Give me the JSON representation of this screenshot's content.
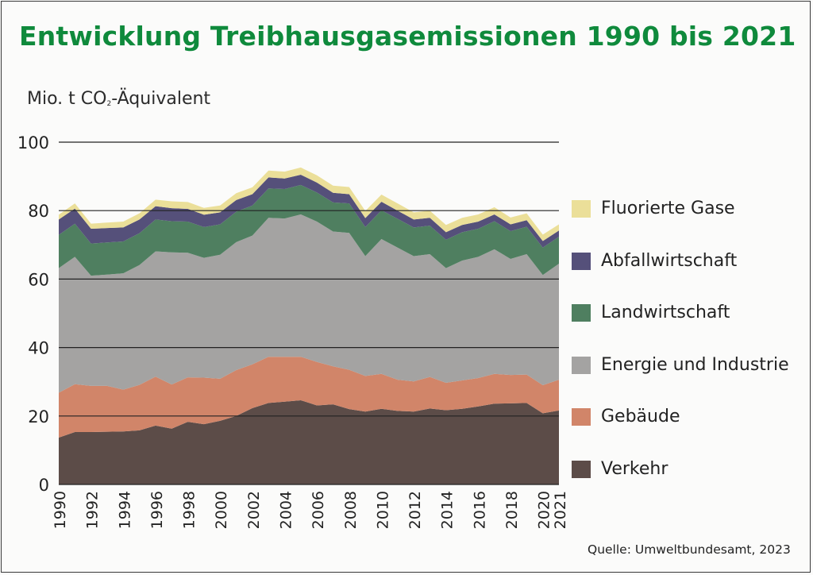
{
  "title": "Entwicklung Treibhausgasemissionen 1990 bis 2021",
  "units": {
    "main": "Mio. t CO",
    "sub": "2",
    "rest": "-Äquivalent"
  },
  "source": "Quelle: Umweltbundesamt, 2023",
  "colors": {
    "verkehr": "#5c4c48",
    "gebaeude": "#d18569",
    "energie": "#a4a3a2",
    "landwirtschaft": "#4f7f60",
    "abfall": "#55507a",
    "fgase": "#ebdf99",
    "grid": "#222222"
  },
  "chart_data": {
    "type": "area",
    "stacked": true,
    "x": [
      1990,
      1991,
      1992,
      1993,
      1994,
      1995,
      1996,
      1997,
      1998,
      1999,
      2000,
      2001,
      2002,
      2003,
      2004,
      2005,
      2006,
      2007,
      2008,
      2009,
      2010,
      2011,
      2012,
      2013,
      2014,
      2015,
      2016,
      2017,
      2018,
      2019,
      2020,
      2021
    ],
    "x_tick_labels": [
      "1990",
      "1992",
      "1994",
      "1996",
      "1998",
      "2000",
      "2002",
      "2004",
      "2006",
      "2008",
      "2010",
      "2012",
      "2014",
      "2016",
      "2018",
      "2020",
      "2021"
    ],
    "y_ticks": [
      "0",
      "20",
      "40",
      "60",
      "80",
      "100"
    ],
    "ylim": [
      0,
      100
    ],
    "ylabel": "Mio. t CO2-Äquivalent",
    "grid": true,
    "legend_position": "right",
    "series": [
      {
        "name": "Verkehr",
        "key": "verkehr",
        "values": [
          13.7,
          15.3,
          15.3,
          15.4,
          15.5,
          15.8,
          17.2,
          16.3,
          18.3,
          17.6,
          18.6,
          20.0,
          22.3,
          23.8,
          24.2,
          24.6,
          23.1,
          23.4,
          22.0,
          21.3,
          22.1,
          21.5,
          21.3,
          22.2,
          21.7,
          22.1,
          22.8,
          23.6,
          23.7,
          23.8,
          20.8,
          21.6
        ]
      },
      {
        "name": "Gebäude",
        "key": "gebaeude",
        "values": [
          13.1,
          14.0,
          13.5,
          13.4,
          12.2,
          13.3,
          14.3,
          12.9,
          13.0,
          13.6,
          12.3,
          13.4,
          12.8,
          13.5,
          13.1,
          12.7,
          12.7,
          11.1,
          11.5,
          10.4,
          10.2,
          9.1,
          8.8,
          9.2,
          8.0,
          8.3,
          8.3,
          8.7,
          8.3,
          8.3,
          8.2,
          9.0
        ]
      },
      {
        "name": "Energie und Industrie",
        "key": "energie",
        "values": [
          36.4,
          37.2,
          32.2,
          32.5,
          34.0,
          35.0,
          36.6,
          38.6,
          36.4,
          35.0,
          36.2,
          37.4,
          37.6,
          40.6,
          40.4,
          41.6,
          41.0,
          39.4,
          40.0,
          35.0,
          39.4,
          38.6,
          36.6,
          35.9,
          33.5,
          35.0,
          35.4,
          36.4,
          33.9,
          35.2,
          32.2,
          33.9
        ]
      },
      {
        "name": "Landwirtschaft",
        "key": "landwirtschaft",
        "values": [
          9.7,
          9.7,
          9.4,
          9.4,
          9.3,
          9.3,
          9.3,
          9.1,
          9.1,
          9.0,
          8.9,
          8.9,
          8.8,
          8.6,
          8.6,
          8.6,
          8.5,
          8.5,
          8.6,
          8.5,
          8.4,
          8.4,
          8.4,
          8.3,
          8.3,
          8.3,
          8.2,
          8.2,
          8.1,
          8.0,
          8.0,
          7.9
        ]
      },
      {
        "name": "Abfallwirtschaft",
        "key": "abfall",
        "values": [
          4.5,
          4.4,
          4.3,
          4.2,
          4.1,
          4.0,
          3.9,
          3.8,
          3.7,
          3.6,
          3.5,
          3.4,
          3.3,
          3.2,
          3.1,
          3.0,
          2.9,
          2.8,
          2.7,
          2.6,
          2.5,
          2.4,
          2.3,
          2.3,
          2.2,
          2.1,
          2.1,
          2.0,
          2.0,
          1.9,
          1.9,
          1.8
        ]
      },
      {
        "name": "Fluorierte Gase",
        "key": "fgase",
        "values": [
          1.4,
          1.5,
          1.5,
          1.6,
          1.7,
          1.8,
          1.9,
          2.0,
          2.0,
          2.0,
          2.0,
          2.0,
          2.0,
          2.0,
          2.0,
          2.1,
          2.1,
          2.1,
          2.1,
          2.1,
          2.1,
          2.1,
          2.1,
          2.1,
          2.1,
          2.1,
          2.1,
          2.1,
          2.0,
          2.0,
          1.9,
          1.8
        ]
      }
    ]
  },
  "legend": [
    {
      "label": "Fluorierte Gase",
      "key": "fgase"
    },
    {
      "label": "Abfallwirtschaft",
      "key": "abfall"
    },
    {
      "label": "Landwirtschaft",
      "key": "landwirtschaft"
    },
    {
      "label": "Energie und Industrie",
      "key": "energie"
    },
    {
      "label": "Gebäude",
      "key": "gebaeude"
    },
    {
      "label": "Verkehr",
      "key": "verkehr"
    }
  ]
}
